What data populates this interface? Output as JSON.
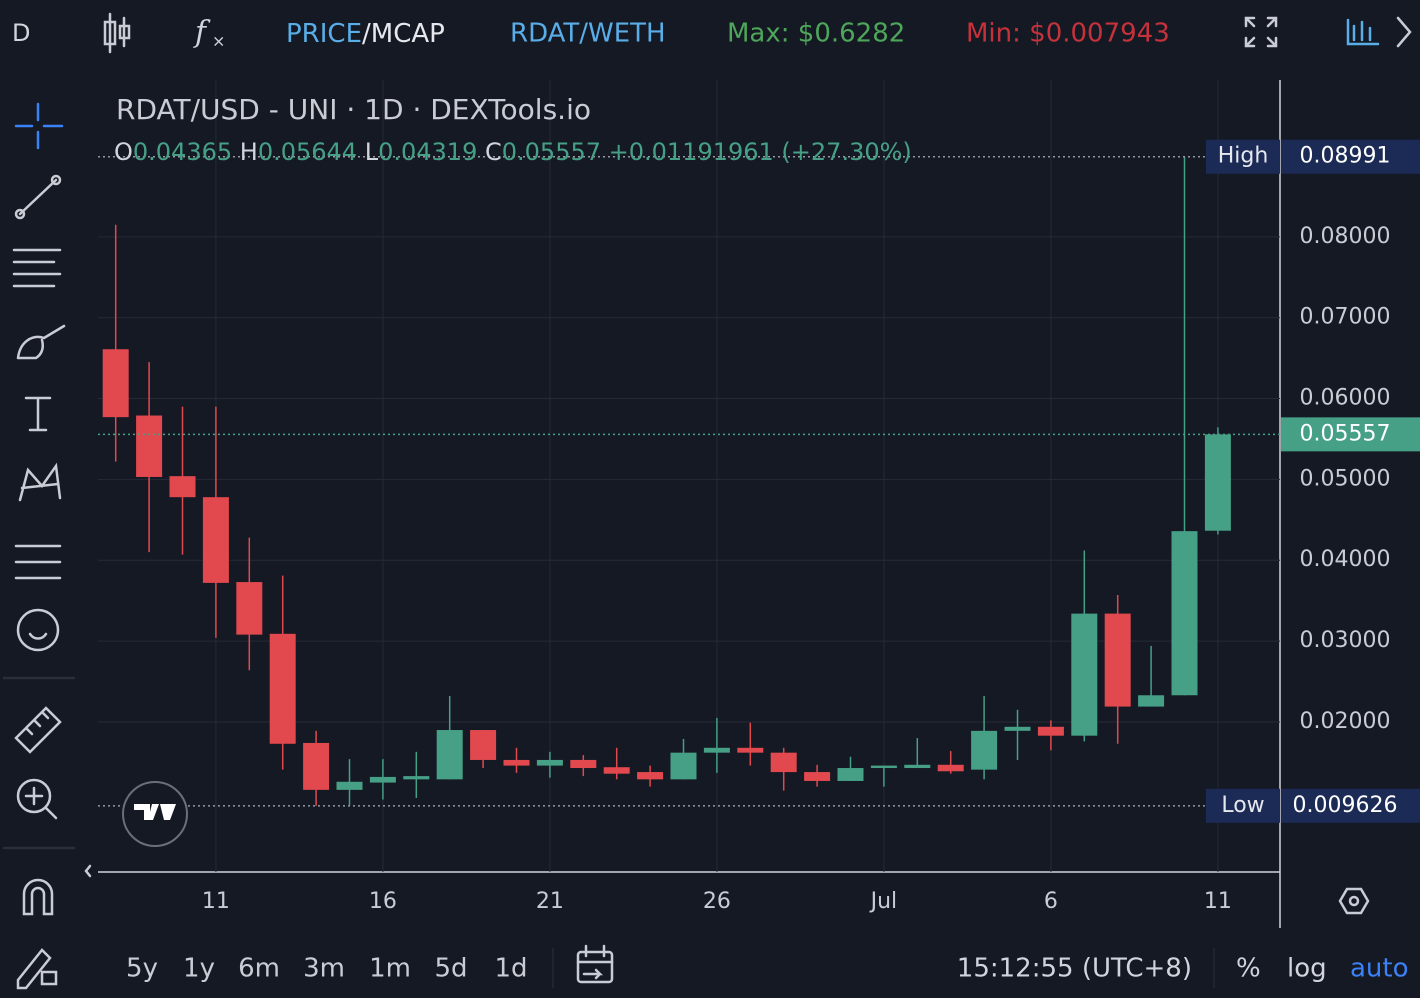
{
  "toolbar": {
    "symbol_letter": "D",
    "price_part": "PRICE",
    "mcap_part": "/MCAP",
    "pair": "RDAT/WETH",
    "max": "Max: $0.6282",
    "min": "Min: $0.007943"
  },
  "legend": {
    "title": "RDAT/USD - UNI · 1D · DEXTools.io",
    "o": "O",
    "h": "H",
    "l": "L",
    "c": "C",
    "change": "+0.01191961 (+27.30%)"
  },
  "chart_data": {
    "type": "candlestick",
    "categories": [
      null,
      null,
      null,
      "11",
      null,
      null,
      null,
      null,
      "16",
      null,
      null,
      null,
      null,
      "21",
      null,
      null,
      null,
      null,
      "26",
      null,
      null,
      null,
      null,
      "Jul",
      null,
      null,
      null,
      null,
      "6",
      null,
      null,
      null,
      null,
      "11"
    ],
    "open": [
      0.0661,
      0.0579,
      0.0504,
      0.0478,
      0.0373,
      0.0309,
      0.0174,
      0.0116,
      0.0125,
      0.0129,
      0.0129,
      0.019,
      0.0153,
      0.0146,
      0.0153,
      0.0144,
      0.0138,
      0.0129,
      0.0162,
      0.0168,
      0.0162,
      0.0138,
      0.0127,
      0.0143,
      0.0143,
      0.0147,
      0.0141,
      0.0189,
      0.0194,
      0.0183,
      0.0334,
      0.0219,
      0.0233,
      0.04365
    ],
    "high": [
      0.0815,
      0.0645,
      0.059,
      0.059,
      0.0428,
      0.0381,
      0.0189,
      0.0154,
      0.0154,
      0.0163,
      0.0232,
      0.019,
      0.0168,
      0.0163,
      0.0159,
      0.0168,
      0.0146,
      0.0179,
      0.0205,
      0.0199,
      0.0168,
      0.0147,
      0.0157,
      0.0146,
      0.018,
      0.0164,
      0.0232,
      0.0215,
      0.0202,
      0.0412,
      0.0357,
      0.0294,
      0.08991,
      0.05644
    ],
    "low": [
      0.0522,
      0.041,
      0.0407,
      0.0304,
      0.0264,
      0.0141,
      0.009626,
      0.0097,
      0.0104,
      0.0106,
      0.0129,
      0.0143,
      0.0137,
      0.0131,
      0.0133,
      0.0129,
      0.012,
      0.0129,
      0.0137,
      0.0146,
      0.0115,
      0.012,
      0.0127,
      0.012,
      0.0143,
      0.0136,
      0.0129,
      0.0153,
      0.0165,
      0.0176,
      0.0173,
      0.0219,
      0.0233,
      0.04319
    ],
    "close": [
      0.0577,
      0.0503,
      0.0478,
      0.0372,
      0.0308,
      0.0173,
      0.0116,
      0.0126,
      0.0132,
      0.0133,
      0.019,
      0.0153,
      0.0146,
      0.0153,
      0.0143,
      0.0136,
      0.0129,
      0.0162,
      0.0168,
      0.0162,
      0.0138,
      0.0127,
      0.0143,
      0.0146,
      0.0147,
      0.0139,
      0.0189,
      0.0194,
      0.0183,
      0.0334,
      0.0219,
      0.0233,
      0.0436,
      0.05557
    ],
    "up_color": "#46a086",
    "down_color": "#e2494e",
    "ylim": [
      0.00144,
      0.0994
    ],
    "yticks": [
      {
        "value": 0.02,
        "label": "0.02000"
      },
      {
        "value": 0.03,
        "label": "0.03000"
      },
      {
        "value": 0.04,
        "label": "0.04000"
      },
      {
        "value": 0.05,
        "label": "0.05000"
      },
      {
        "value": 0.06,
        "label": "0.06000"
      },
      {
        "value": 0.07,
        "label": "0.07000"
      },
      {
        "value": 0.08,
        "label": "0.08000"
      }
    ],
    "grid": true,
    "high_label": "High",
    "low_label": "Low"
  },
  "bottom": {
    "ranges": [
      "5y",
      "1y",
      "6m",
      "3m",
      "1m",
      "5d",
      "1d"
    ],
    "time": "15:12:55 (UTC+8)",
    "percent": "%",
    "log": "log",
    "auto": "auto"
  }
}
